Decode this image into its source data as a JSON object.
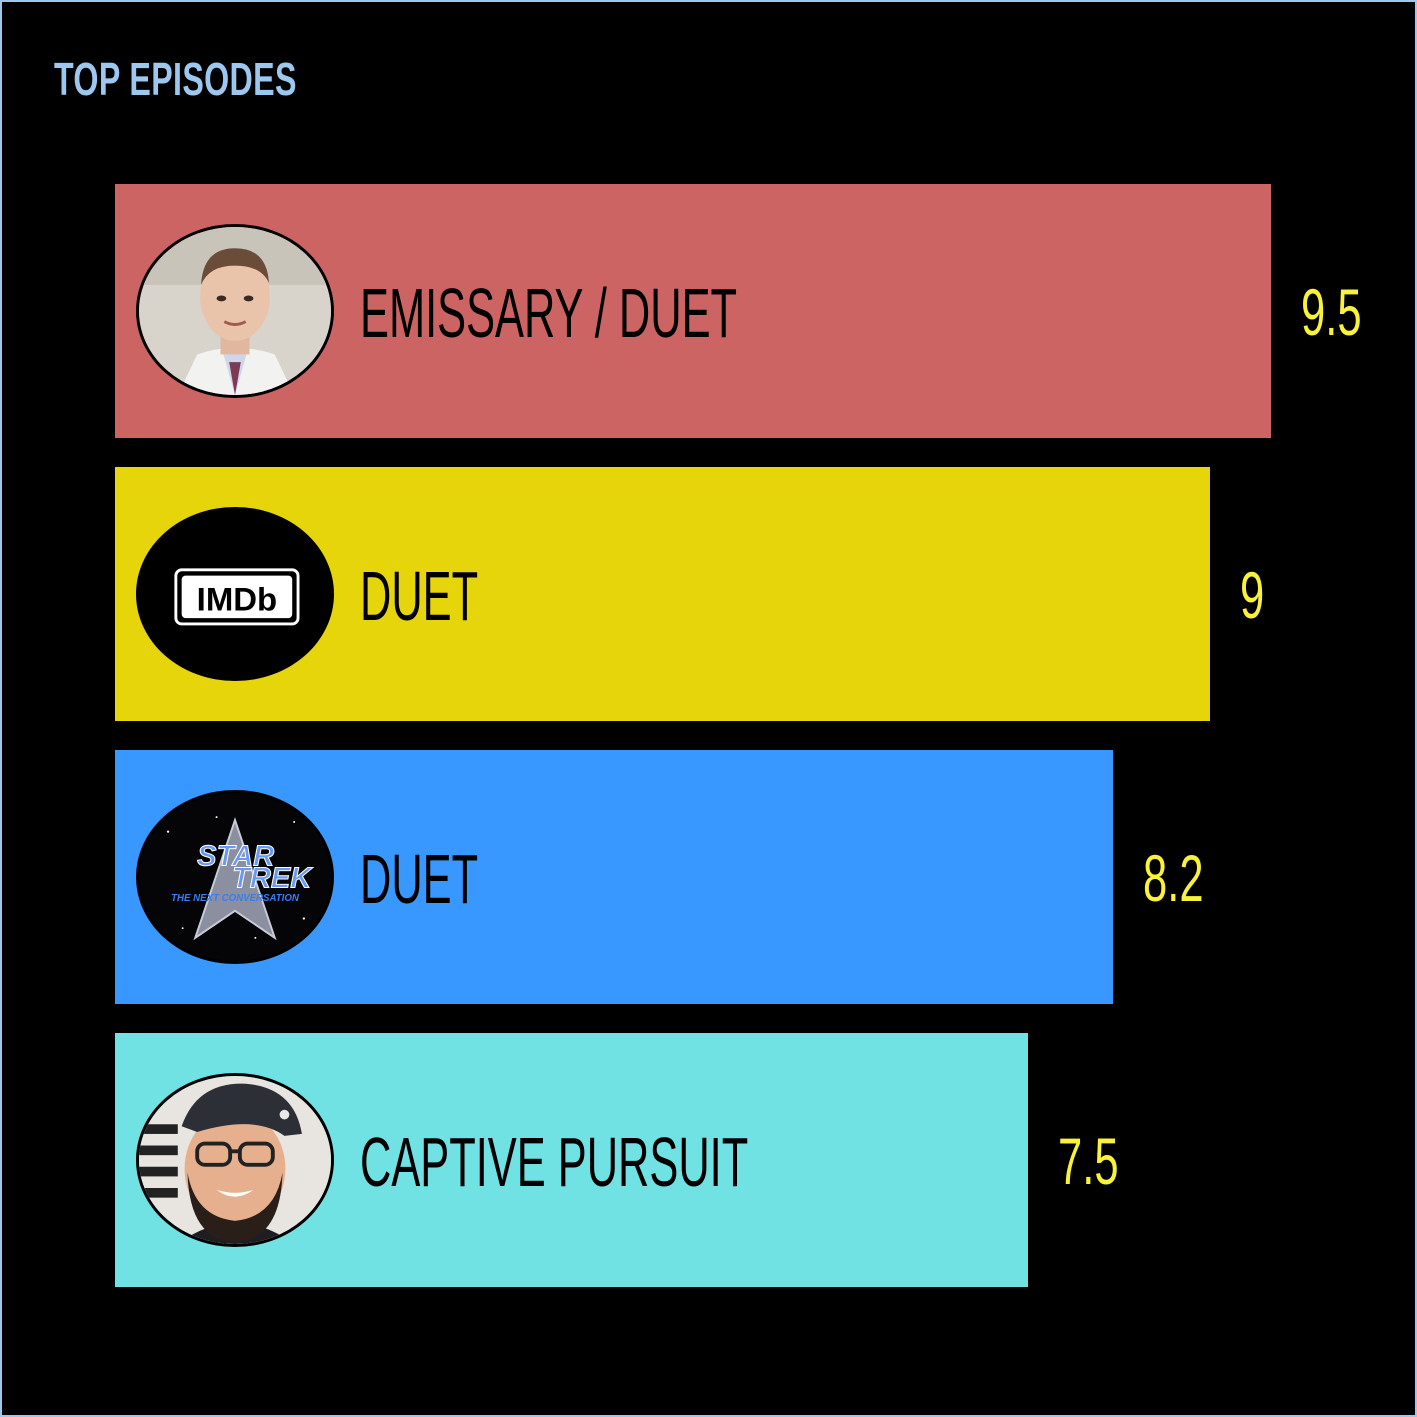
{
  "chart_data": {
    "type": "bar",
    "orientation": "horizontal",
    "title": "TOP EPISODES",
    "categories": [
      "EMISSARY / DUET",
      "DUET",
      "DUET",
      "CAPTIVE PURSUIT"
    ],
    "values": [
      9.5,
      9,
      8.2,
      7.5
    ],
    "value_labels": [
      "9.5",
      "9",
      "8.2",
      "7.5"
    ],
    "bar_colors": [
      "#cc6464",
      "#e5d50a",
      "#3898ff",
      "#70e2e4"
    ],
    "avatars": [
      "man-portrait-icon",
      "imdb-logo-icon",
      "star-trek-tnc-logo-icon",
      "bearded-man-portrait-icon"
    ],
    "imdb_logo_text": "IMDb",
    "star_trek_logo_text": [
      "STAR",
      "TREK",
      "THE NEXT CONVERSATION"
    ],
    "grid": false,
    "legend": "none"
  }
}
